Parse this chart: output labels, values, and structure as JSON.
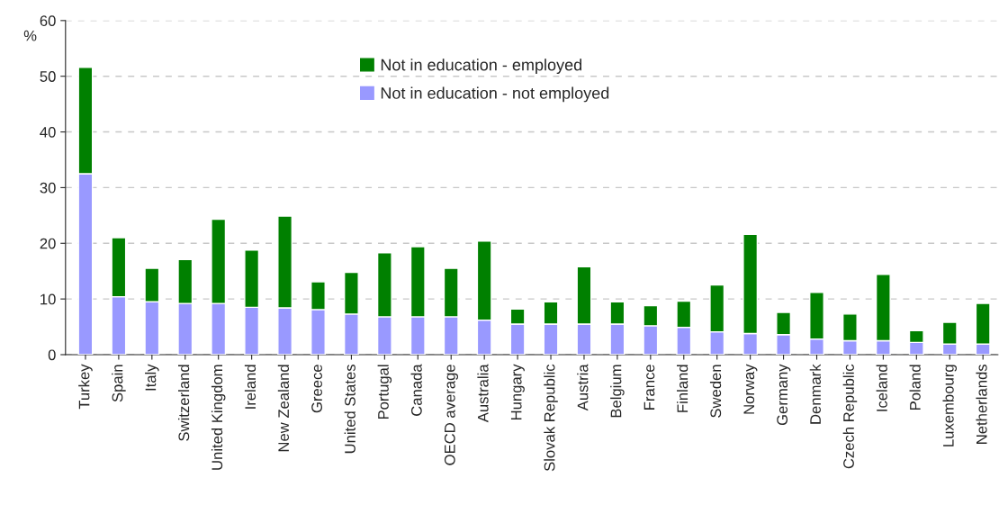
{
  "chart_data": {
    "type": "bar",
    "stacked": true,
    "ylabel": "%",
    "categories": [
      "Turkey",
      "Spain",
      "Italy",
      "Switzerland",
      "United Kingdom",
      "Ireland",
      "New Zealand",
      "Greece",
      "United States",
      "Portugal",
      "Canada",
      "OECD average",
      "Australia",
      "Hungary",
      "Slovak Republic",
      "Austria",
      "Belgium",
      "France",
      "Finland",
      "Sweden",
      "Norway",
      "Germany",
      "Denmark",
      "Czech Republic",
      "Iceland",
      "Poland",
      "Luxembourg",
      "Netherlands"
    ],
    "series": [
      {
        "name": "Not in education - not employed",
        "color": "#9999ff",
        "values": [
          32.5,
          10.4,
          9.5,
          9.2,
          9.2,
          8.5,
          8.4,
          8.1,
          7.3,
          6.8,
          6.8,
          6.8,
          6.2,
          5.5,
          5.5,
          5.5,
          5.5,
          5.2,
          4.9,
          4.1,
          3.8,
          3.6,
          2.8,
          2.5,
          2.5,
          2.2,
          1.9,
          1.9
        ]
      },
      {
        "name": "Not in education - employed",
        "color": "#008000",
        "values": [
          19.1,
          10.6,
          6.0,
          7.9,
          15.1,
          10.3,
          16.5,
          5.0,
          7.5,
          11.5,
          12.6,
          8.7,
          14.2,
          2.7,
          4.0,
          10.3,
          4.0,
          3.6,
          4.7,
          8.4,
          17.8,
          4.0,
          8.4,
          4.8,
          11.9,
          2.1,
          3.9,
          7.3
        ]
      }
    ],
    "ylim": [
      0,
      60
    ],
    "yticks": [
      0,
      10,
      20,
      30,
      40,
      50,
      60
    ],
    "grid": "y",
    "legend": "top"
  }
}
